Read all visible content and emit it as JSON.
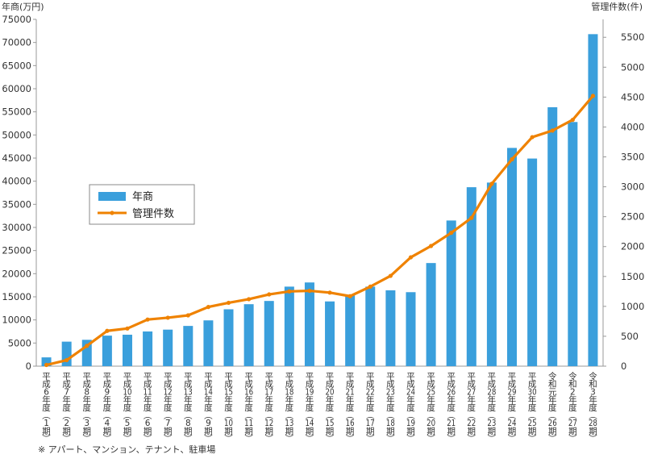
{
  "chart_data": {
    "type": "bar+line",
    "left_axis_title": "年商(万円)",
    "right_axis_title": "管理件数(件)",
    "y_left_range": [
      0,
      75000
    ],
    "y_left_ticks": [
      "0",
      "5000",
      "10000",
      "15000",
      "20000",
      "25000",
      "30000",
      "35000",
      "40000",
      "45000",
      "50000",
      "55000",
      "60000",
      "65000",
      "70000",
      "75000"
    ],
    "y_right_range": [
      0,
      5800
    ],
    "y_right_ticks": [
      "0",
      "500",
      "1000",
      "1500",
      "2000",
      "2500",
      "3000",
      "3500",
      "4000",
      "4500",
      "5000",
      "5500"
    ],
    "categories": [
      "平成6年度(1期)",
      "平成7年度(2期)",
      "平成8年度(3期)",
      "平成9年度(4期)",
      "平成10年度(5期)",
      "平成11年度(6期)",
      "平成12年度(7期)",
      "平成13年度(8期)",
      "平成14年度(9期)",
      "平成15年度(10期)",
      "平成16年度(11期)",
      "平成17年度(12期)",
      "平成18年度(13期)",
      "平成19年度(14期)",
      "平成20年度(15期)",
      "平成21年度(16期)",
      "平成22年度(17期)",
      "平成23年度(18期)",
      "平成24年度(19期)",
      "平成25年度(20期)",
      "平成26年度(21期)",
      "平成27年度(22期)",
      "平成28年度(23期)",
      "平成29年度(24期)",
      "平成30年度(25期)",
      "令和元年度(26期)",
      "令和2年度(27期)",
      "令和3年度(28期)"
    ],
    "category_labels": [
      [
        "平",
        "成",
        "6",
        "年",
        "度",
        "︵",
        "1",
        "期",
        "︶"
      ],
      [
        "平",
        "成",
        "7",
        "年",
        "度",
        "︵",
        "2",
        "期",
        "︶"
      ],
      [
        "平",
        "成",
        "8",
        "年",
        "度",
        "︵",
        "3",
        "期",
        "︶"
      ],
      [
        "平",
        "成",
        "9",
        "年",
        "度",
        "︵",
        "4",
        "期",
        "︶"
      ],
      [
        "平",
        "成",
        "10",
        "年",
        "度",
        "︵",
        "5",
        "期",
        "︶"
      ],
      [
        "平",
        "成",
        "11",
        "年",
        "度",
        "︵",
        "6",
        "期",
        "︶"
      ],
      [
        "平",
        "成",
        "12",
        "年",
        "度",
        "︵",
        "7",
        "期",
        "︶"
      ],
      [
        "平",
        "成",
        "13",
        "年",
        "度",
        "︵",
        "8",
        "期",
        "︶"
      ],
      [
        "平",
        "成",
        "14",
        "年",
        "度",
        "︵",
        "9",
        "期",
        "︶"
      ],
      [
        "平",
        "成",
        "15",
        "年",
        "度",
        "︵",
        "10",
        "期",
        "︶"
      ],
      [
        "平",
        "成",
        "16",
        "年",
        "度",
        "︵",
        "11",
        "期",
        "︶"
      ],
      [
        "平",
        "成",
        "17",
        "年",
        "度",
        "︵",
        "12",
        "期",
        "︶"
      ],
      [
        "平",
        "成",
        "18",
        "年",
        "度",
        "︵",
        "13",
        "期",
        "︶"
      ],
      [
        "平",
        "成",
        "19",
        "年",
        "度",
        "︵",
        "14",
        "期",
        "︶"
      ],
      [
        "平",
        "成",
        "20",
        "年",
        "度",
        "︵",
        "15",
        "期",
        "︶"
      ],
      [
        "平",
        "成",
        "21",
        "年",
        "度",
        "︵",
        "16",
        "期",
        "︶"
      ],
      [
        "平",
        "成",
        "22",
        "年",
        "度",
        "︵",
        "17",
        "期",
        "︶"
      ],
      [
        "平",
        "成",
        "23",
        "年",
        "度",
        "︵",
        "18",
        "期",
        "︶"
      ],
      [
        "平",
        "成",
        "24",
        "年",
        "度",
        "︵",
        "19",
        "期",
        "︶"
      ],
      [
        "平",
        "成",
        "25",
        "年",
        "度",
        "︵",
        "20",
        "期",
        "︶"
      ],
      [
        "平",
        "成",
        "26",
        "年",
        "度",
        "︵",
        "21",
        "期",
        "︶"
      ],
      [
        "平",
        "成",
        "27",
        "年",
        "度",
        "︵",
        "22",
        "期",
        "︶"
      ],
      [
        "平",
        "成",
        "28",
        "年",
        "度",
        "︵",
        "23",
        "期",
        "︶"
      ],
      [
        "平",
        "成",
        "29",
        "年",
        "度",
        "︵",
        "24",
        "期",
        "︶"
      ],
      [
        "平",
        "成",
        "30",
        "年",
        "度",
        "︵",
        "25",
        "期",
        "︶"
      ],
      [
        "令",
        "和",
        "元",
        "年",
        "度",
        "︵",
        "26",
        "期",
        "︶"
      ],
      [
        "令",
        "和",
        "2",
        "年",
        "度",
        "︵",
        "27",
        "期",
        "︶"
      ],
      [
        "令",
        "和",
        "3",
        "年",
        "度",
        "︵",
        "28",
        "期",
        "︶"
      ]
    ],
    "series": [
      {
        "name": "年商",
        "kind": "bar",
        "axis": "left",
        "color": "#3a9fdc",
        "values": [
          1900,
          5300,
          5700,
          6600,
          6800,
          7500,
          7900,
          8700,
          9900,
          12300,
          13400,
          14100,
          17200,
          18100,
          14000,
          15300,
          17200,
          16400,
          16000,
          22300,
          31500,
          38700,
          39700,
          47200,
          44900,
          56000,
          52800,
          71800
        ]
      },
      {
        "name": "管理件数",
        "kind": "line",
        "axis": "right",
        "color": "#ef8200",
        "values": [
          20,
          100,
          340,
          590,
          630,
          780,
          810,
          850,
          990,
          1060,
          1120,
          1200,
          1250,
          1260,
          1230,
          1170,
          1330,
          1510,
          1820,
          2010,
          2230,
          2480,
          3050,
          3460,
          3830,
          3940,
          4120,
          4520
        ]
      }
    ],
    "legend_position": "upper-left inside plot",
    "grid": false
  },
  "footnote": "※ アパート、マンション、テナント、駐車場"
}
